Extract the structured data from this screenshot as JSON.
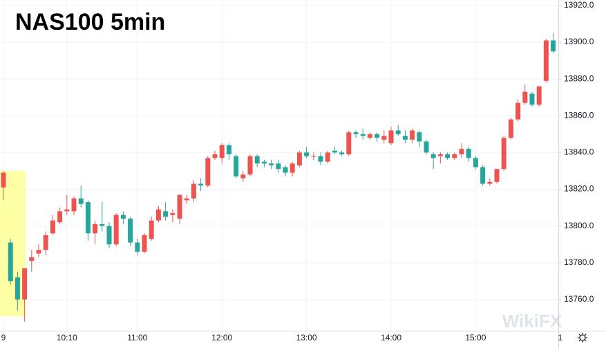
{
  "chart_data": {
    "type": "candlestick",
    "title": "NAS100 5min",
    "watermark": "WikiFX",
    "categories": [
      "9",
      null,
      null,
      null,
      null,
      null,
      null,
      null,
      null,
      "10:10",
      null,
      null,
      null,
      null,
      null,
      null,
      null,
      null,
      null,
      "11:00",
      null,
      null,
      null,
      null,
      null,
      null,
      null,
      null,
      null,
      null,
      null,
      "12:00",
      null,
      null,
      null,
      null,
      null,
      null,
      null,
      null,
      null,
      null,
      null,
      "13:00",
      null,
      null,
      null,
      null,
      null,
      null,
      null,
      null,
      null,
      null,
      null,
      "14:00",
      null,
      null,
      null,
      null,
      null,
      null,
      null,
      null,
      null,
      null,
      null,
      "15:00",
      null,
      null,
      null,
      null,
      null,
      null,
      null,
      null,
      null,
      null,
      null,
      "1"
    ],
    "open": [
      13821,
      13791,
      13772,
      13760,
      13781,
      13785,
      13787,
      13796,
      13802,
      13808,
      13808,
      13815,
      13813,
      13796,
      13801,
      13800,
      13790,
      13806,
      13804,
      13791,
      13786,
      13793,
      13803,
      13808,
      13806,
      13804,
      13814,
      13815,
      13823,
      13822,
      13837,
      13837,
      13844,
      13838,
      13826,
      13828,
      13838,
      13835,
      13834,
      13834,
      13832,
      13829,
      13833,
      13840,
      13838,
      13838,
      13835,
      13841,
      13840,
      13839,
      13851,
      13850,
      13848,
      13850,
      13847,
      13845,
      13852,
      13849,
      13847,
      13851,
      13846,
      13839,
      13838,
      13839,
      13837,
      13839,
      13842,
      13837,
      13832,
      13823,
      13824,
      13831,
      13848,
      13858,
      13867,
      13872,
      13866,
      13879,
      13901,
      null
    ],
    "high": [
      13830,
      13793,
      13775,
      13777,
      13787,
      13790,
      13797,
      13806,
      13810,
      13817,
      13816,
      13822,
      13814,
      13803,
      13813,
      13802,
      13807,
      13808,
      13805,
      13793,
      13796,
      13805,
      13811,
      13813,
      13809,
      13817,
      13817,
      13825,
      13826,
      13838,
      13841,
      13845,
      13845,
      13839,
      13830,
      13839,
      13839,
      13836,
      13836,
      13836,
      13833,
      13835,
      13841,
      13843,
      13840,
      13840,
      13841,
      13843,
      13841,
      13852,
      13852,
      13853,
      13851,
      13851,
      13852,
      13854,
      13855,
      13852,
      13853,
      13852,
      13847,
      13840,
      13840,
      13840,
      13840,
      13845,
      13843,
      13838,
      13833,
      13826,
      13831,
      13849,
      13859,
      13869,
      13877,
      13873,
      13876,
      13902,
      13905,
      null
    ],
    "low": [
      13814,
      13768,
      13754,
      13748,
      13775,
      13783,
      13784,
      13795,
      13801,
      13806,
      13806,
      13810,
      13792,
      13790,
      13797,
      13788,
      13789,
      13801,
      13789,
      13784,
      13785,
      13792,
      13802,
      13803,
      13802,
      13801,
      13812,
      13813,
      13819,
      13821,
      13836,
      13834,
      13836,
      13826,
      13824,
      13827,
      13832,
      13832,
      13831,
      13829,
      13827,
      13827,
      13832,
      13837,
      13836,
      13833,
      13834,
      13839,
      13838,
      13838,
      13848,
      13847,
      13847,
      13846,
      13845,
      13844,
      13849,
      13845,
      13845,
      13843,
      13839,
      13831,
      13834,
      13836,
      13836,
      13837,
      13835,
      13831,
      13822,
      13822,
      13823,
      13830,
      13847,
      13857,
      13866,
      13865,
      13865,
      13878,
      13894,
      null
    ],
    "close": [
      13829,
      13770,
      13760,
      13777,
      13783,
      13787,
      13795,
      13803,
      13808,
      13809,
      13815,
      13812,
      13796,
      13801,
      13800,
      13790,
      13806,
      13804,
      13791,
      13786,
      13795,
      13803,
      13809,
      13805,
      13807,
      13817,
      13815,
      13823,
      13822,
      13837,
      13839,
      13844,
      13839,
      13827,
      13828,
      13838,
      13834,
      13834,
      13833,
      13831,
      13829,
      13834,
      13840,
      13838,
      13838,
      13835,
      13840,
      13840,
      13839,
      13851,
      13850,
      13849,
      13850,
      13848,
      13849,
      13852,
      13850,
      13847,
      13852,
      13846,
      13840,
      13837,
      13839,
      13837,
      13839,
      13842,
      13837,
      13832,
      13823,
      13824,
      13831,
      13848,
      13858,
      13867,
      13873,
      13866,
      13876,
      13901,
      13895,
      null
    ],
    "up_color": "#ef5350",
    "down_color": "#26a69a",
    "ylim": [
      13743,
      13923
    ],
    "yticks": [
      {
        "value": 13760,
        "label": "13760.0"
      },
      {
        "value": 13780,
        "label": "13780.0"
      },
      {
        "value": 13800,
        "label": "13800.0"
      },
      {
        "value": 13820,
        "label": "13820.0"
      },
      {
        "value": 13840,
        "label": "13840.0"
      },
      {
        "value": 13860,
        "label": "13860.0"
      },
      {
        "value": 13880,
        "label": "13880.0"
      },
      {
        "value": 13900,
        "label": "13900.0"
      },
      {
        "value": 13920,
        "label": "13920.0"
      }
    ],
    "grid": true
  }
}
